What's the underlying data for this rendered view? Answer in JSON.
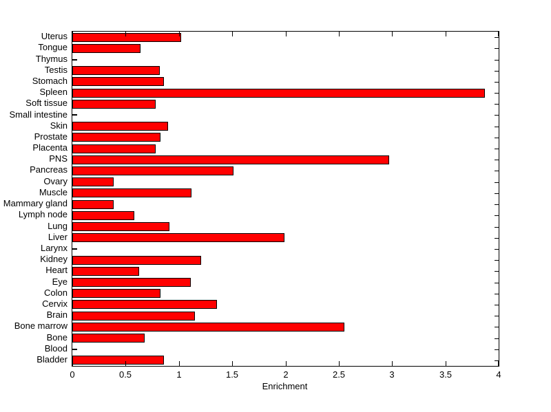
{
  "figure": {
    "background_color": "#ffffff",
    "axis_color": "#000000"
  },
  "chart_data": {
    "type": "bar",
    "orientation": "horizontal",
    "title": "",
    "xlabel": "Enrichment",
    "ylabel": "",
    "xlim": [
      0,
      4
    ],
    "xticks": [
      0,
      0.5,
      1,
      1.5,
      2,
      2.5,
      3,
      3.5,
      4
    ],
    "xtick_labels": [
      "0",
      "0.5",
      "1",
      "1.5",
      "2",
      "2.5",
      "3",
      "3.5",
      "4"
    ],
    "grid": false,
    "legend": null,
    "bar_color": "#ff0000",
    "bar_edge_color": "#000000",
    "categories_top_to_bottom": [
      "Uterus",
      "Tongue",
      "Thymus",
      "Testis",
      "Stomach",
      "Spleen",
      "Soft tissue",
      "Small intestine",
      "Skin",
      "Prostate",
      "Placenta",
      "PNS",
      "Pancreas",
      "Ovary",
      "Muscle",
      "Mammary gland",
      "Lymph node",
      "Lung",
      "Liver",
      "Larynx",
      "Kidney",
      "Heart",
      "Eye",
      "Colon",
      "Cervix",
      "Brain",
      "Bone marrow",
      "Bone",
      "Blood",
      "Bladder"
    ],
    "values": [
      1.02,
      0.64,
      0.01,
      0.82,
      0.86,
      3.87,
      0.78,
      0.01,
      0.9,
      0.83,
      0.78,
      2.97,
      1.51,
      0.39,
      1.12,
      0.39,
      0.58,
      0.91,
      1.99,
      0.01,
      1.21,
      0.63,
      1.11,
      0.83,
      1.36,
      1.15,
      2.55,
      0.68,
      0.01,
      0.86
    ]
  }
}
